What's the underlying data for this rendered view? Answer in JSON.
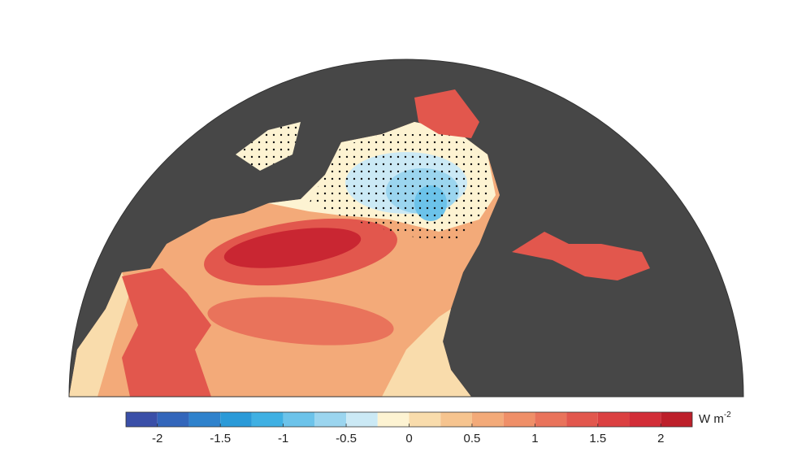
{
  "colorbar": {
    "levels": [
      -2.25,
      -2,
      -1.75,
      -1.5,
      -1.25,
      -1,
      -0.75,
      -0.5,
      -0.25,
      0,
      0.25,
      0.5,
      0.75,
      1,
      1.25,
      1.5,
      1.75,
      2,
      2.25
    ],
    "colors": [
      "#3a4fa8",
      "#3366bb",
      "#2f82cc",
      "#2a9ad8",
      "#3fb0e3",
      "#6cc3ea",
      "#9bd5ef",
      "#cbe9f5",
      "#fdf3d2",
      "#f9dcac",
      "#f6c48f",
      "#f3aa79",
      "#ef8f68",
      "#e9735b",
      "#e2574d",
      "#db4041",
      "#d22d37",
      "#bd1f2a"
    ],
    "xlim": [
      -2.25,
      2.25
    ],
    "xticks": [
      -2,
      -1.5,
      -1,
      -0.5,
      0,
      0.5,
      1,
      1.5,
      2
    ],
    "unit": "W m",
    "unit_exponent": "-2"
  }
}
